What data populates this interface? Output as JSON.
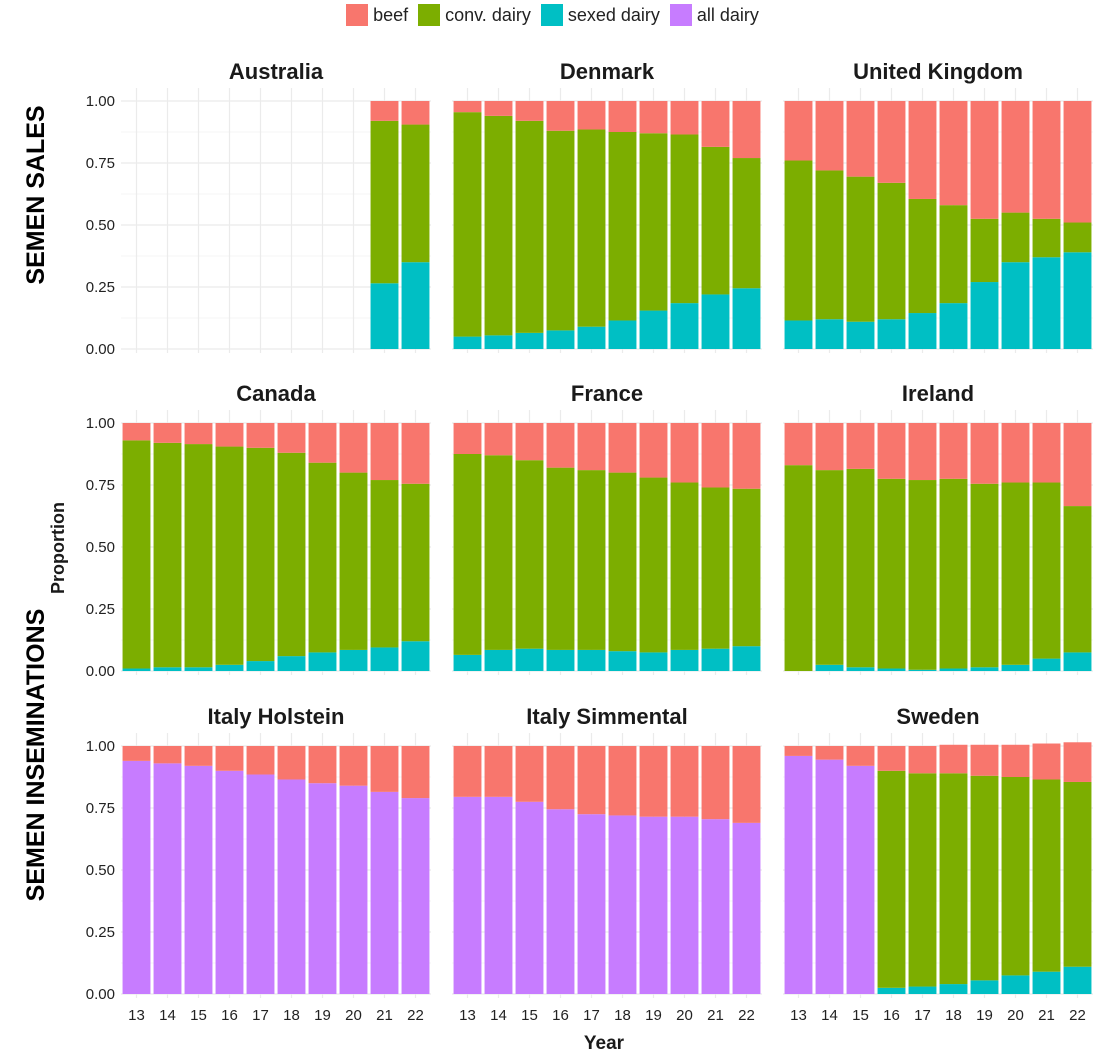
{
  "chart_data": {
    "type": "bar",
    "stacking": "stacked-proportion",
    "xlabel": "Year",
    "ylabel": "Proportion",
    "ylim": [
      0,
      1
    ],
    "yticks": [
      "0.00",
      "0.25",
      "0.50",
      "0.75",
      "1.00"
    ],
    "years": [
      "13",
      "14",
      "15",
      "16",
      "17",
      "18",
      "19",
      "20",
      "21",
      "22"
    ],
    "legend": {
      "placement": "top-center",
      "entries": [
        {
          "key": "beef",
          "label": "beef",
          "color": "#F8766D"
        },
        {
          "key": "conv",
          "label": "conv. dairy",
          "color": "#7CAE00"
        },
        {
          "key": "sexed",
          "label": "sexed dairy",
          "color": "#00BFC4"
        },
        {
          "key": "all",
          "label": "all dairy",
          "color": "#C77CFF"
        }
      ]
    },
    "row_labels": [
      "SEMEN SALES",
      "SEMEN INSEMINATIONS"
    ],
    "grid": true,
    "panels": [
      {
        "title": "Australia",
        "bars": {
          "21": {
            "sexed": 0.265,
            "conv": 0.655,
            "beef": 0.08
          },
          "22": {
            "sexed": 0.35,
            "conv": 0.555,
            "beef": 0.095
          }
        }
      },
      {
        "title": "Denmark",
        "bars": {
          "13": {
            "sexed": 0.05,
            "conv": 0.905,
            "beef": 0.045
          },
          "14": {
            "sexed": 0.055,
            "conv": 0.885,
            "beef": 0.06
          },
          "15": {
            "sexed": 0.065,
            "conv": 0.855,
            "beef": 0.08
          },
          "16": {
            "sexed": 0.075,
            "conv": 0.805,
            "beef": 0.12
          },
          "17": {
            "sexed": 0.09,
            "conv": 0.795,
            "beef": 0.115
          },
          "18": {
            "sexed": 0.115,
            "conv": 0.76,
            "beef": 0.125
          },
          "19": {
            "sexed": 0.155,
            "conv": 0.715,
            "beef": 0.13
          },
          "20": {
            "sexed": 0.185,
            "conv": 0.68,
            "beef": 0.135
          },
          "21": {
            "sexed": 0.22,
            "conv": 0.595,
            "beef": 0.185
          },
          "22": {
            "sexed": 0.245,
            "conv": 0.525,
            "beef": 0.23
          }
        }
      },
      {
        "title": "United Kingdom",
        "bars": {
          "13": {
            "sexed": 0.115,
            "conv": 0.645,
            "beef": 0.24
          },
          "14": {
            "sexed": 0.12,
            "conv": 0.6,
            "beef": 0.28
          },
          "15": {
            "sexed": 0.11,
            "conv": 0.585,
            "beef": 0.305
          },
          "16": {
            "sexed": 0.12,
            "conv": 0.55,
            "beef": 0.33
          },
          "17": {
            "sexed": 0.145,
            "conv": 0.46,
            "beef": 0.395
          },
          "18": {
            "sexed": 0.185,
            "conv": 0.395,
            "beef": 0.42
          },
          "19": {
            "sexed": 0.27,
            "conv": 0.255,
            "beef": 0.475
          },
          "20": {
            "sexed": 0.35,
            "conv": 0.2,
            "beef": 0.45
          },
          "21": {
            "sexed": 0.37,
            "conv": 0.155,
            "beef": 0.475
          },
          "22": {
            "sexed": 0.39,
            "conv": 0.12,
            "beef": 0.49
          }
        }
      },
      {
        "title": "Canada",
        "bars": {
          "13": {
            "sexed": 0.01,
            "conv": 0.92,
            "beef": 0.07
          },
          "14": {
            "sexed": 0.015,
            "conv": 0.905,
            "beef": 0.08
          },
          "15": {
            "sexed": 0.015,
            "conv": 0.9,
            "beef": 0.085
          },
          "16": {
            "sexed": 0.025,
            "conv": 0.88,
            "beef": 0.095
          },
          "17": {
            "sexed": 0.04,
            "conv": 0.86,
            "beef": 0.1
          },
          "18": {
            "sexed": 0.06,
            "conv": 0.82,
            "beef": 0.12
          },
          "19": {
            "sexed": 0.075,
            "conv": 0.765,
            "beef": 0.16
          },
          "20": {
            "sexed": 0.085,
            "conv": 0.715,
            "beef": 0.2
          },
          "21": {
            "sexed": 0.095,
            "conv": 0.675,
            "beef": 0.23
          },
          "22": {
            "sexed": 0.12,
            "conv": 0.635,
            "beef": 0.245
          }
        }
      },
      {
        "title": "France",
        "bars": {
          "13": {
            "sexed": 0.065,
            "conv": 0.81,
            "beef": 0.125
          },
          "14": {
            "sexed": 0.085,
            "conv": 0.785,
            "beef": 0.13
          },
          "15": {
            "sexed": 0.09,
            "conv": 0.76,
            "beef": 0.15
          },
          "16": {
            "sexed": 0.085,
            "conv": 0.735,
            "beef": 0.18
          },
          "17": {
            "sexed": 0.085,
            "conv": 0.725,
            "beef": 0.19
          },
          "18": {
            "sexed": 0.08,
            "conv": 0.72,
            "beef": 0.2
          },
          "19": {
            "sexed": 0.075,
            "conv": 0.705,
            "beef": 0.22
          },
          "20": {
            "sexed": 0.085,
            "conv": 0.675,
            "beef": 0.24
          },
          "21": {
            "sexed": 0.09,
            "conv": 0.65,
            "beef": 0.26
          },
          "22": {
            "sexed": 0.1,
            "conv": 0.635,
            "beef": 0.265
          }
        }
      },
      {
        "title": "Ireland",
        "bars": {
          "13": {
            "sexed": 0.0,
            "conv": 0.83,
            "beef": 0.17
          },
          "14": {
            "sexed": 0.025,
            "conv": 0.785,
            "beef": 0.19
          },
          "15": {
            "sexed": 0.015,
            "conv": 0.8,
            "beef": 0.185
          },
          "16": {
            "sexed": 0.01,
            "conv": 0.765,
            "beef": 0.225
          },
          "17": {
            "sexed": 0.005,
            "conv": 0.765,
            "beef": 0.23
          },
          "18": {
            "sexed": 0.01,
            "conv": 0.765,
            "beef": 0.225
          },
          "19": {
            "sexed": 0.015,
            "conv": 0.74,
            "beef": 0.245
          },
          "20": {
            "sexed": 0.025,
            "conv": 0.735,
            "beef": 0.24
          },
          "21": {
            "sexed": 0.05,
            "conv": 0.71,
            "beef": 0.24
          },
          "22": {
            "sexed": 0.075,
            "conv": 0.59,
            "beef": 0.335
          }
        }
      },
      {
        "title": "Italy Holstein",
        "bars": {
          "13": {
            "all": 0.94,
            "beef": 0.06
          },
          "14": {
            "all": 0.93,
            "beef": 0.07
          },
          "15": {
            "all": 0.92,
            "beef": 0.08
          },
          "16": {
            "all": 0.9,
            "beef": 0.1
          },
          "17": {
            "all": 0.885,
            "beef": 0.115
          },
          "18": {
            "all": 0.865,
            "beef": 0.135
          },
          "19": {
            "all": 0.85,
            "beef": 0.15
          },
          "20": {
            "all": 0.84,
            "beef": 0.16
          },
          "21": {
            "all": 0.815,
            "beef": 0.185
          },
          "22": {
            "all": 0.79,
            "beef": 0.21
          }
        }
      },
      {
        "title": "Italy Simmental",
        "bars": {
          "13": {
            "all": 0.795,
            "beef": 0.205
          },
          "14": {
            "all": 0.795,
            "beef": 0.205
          },
          "15": {
            "all": 0.775,
            "beef": 0.225
          },
          "16": {
            "all": 0.745,
            "beef": 0.255
          },
          "17": {
            "all": 0.725,
            "beef": 0.275
          },
          "18": {
            "all": 0.72,
            "beef": 0.28
          },
          "19": {
            "all": 0.715,
            "beef": 0.285
          },
          "20": {
            "all": 0.715,
            "beef": 0.285
          },
          "21": {
            "all": 0.705,
            "beef": 0.295
          },
          "22": {
            "all": 0.69,
            "beef": 0.31
          }
        }
      },
      {
        "title": "Sweden",
        "bars": {
          "13": {
            "all": 0.96,
            "beef": 0.04
          },
          "14": {
            "all": 0.945,
            "beef": 0.055
          },
          "15": {
            "all": 0.92,
            "beef": 0.08
          },
          "16": {
            "sexed": 0.025,
            "conv": 0.875,
            "beef": 0.1
          },
          "17": {
            "sexed": 0.03,
            "conv": 0.86,
            "beef": 0.11
          },
          "18": {
            "sexed": 0.04,
            "conv": 0.85,
            "beef": 0.115
          },
          "19": {
            "sexed": 0.055,
            "conv": 0.825,
            "beef": 0.125
          },
          "20": {
            "sexed": 0.075,
            "conv": 0.8,
            "beef": 0.13
          },
          "21": {
            "sexed": 0.09,
            "conv": 0.775,
            "beef": 0.145
          },
          "22": {
            "sexed": 0.11,
            "conv": 0.745,
            "beef": 0.16
          }
        }
      }
    ]
  }
}
